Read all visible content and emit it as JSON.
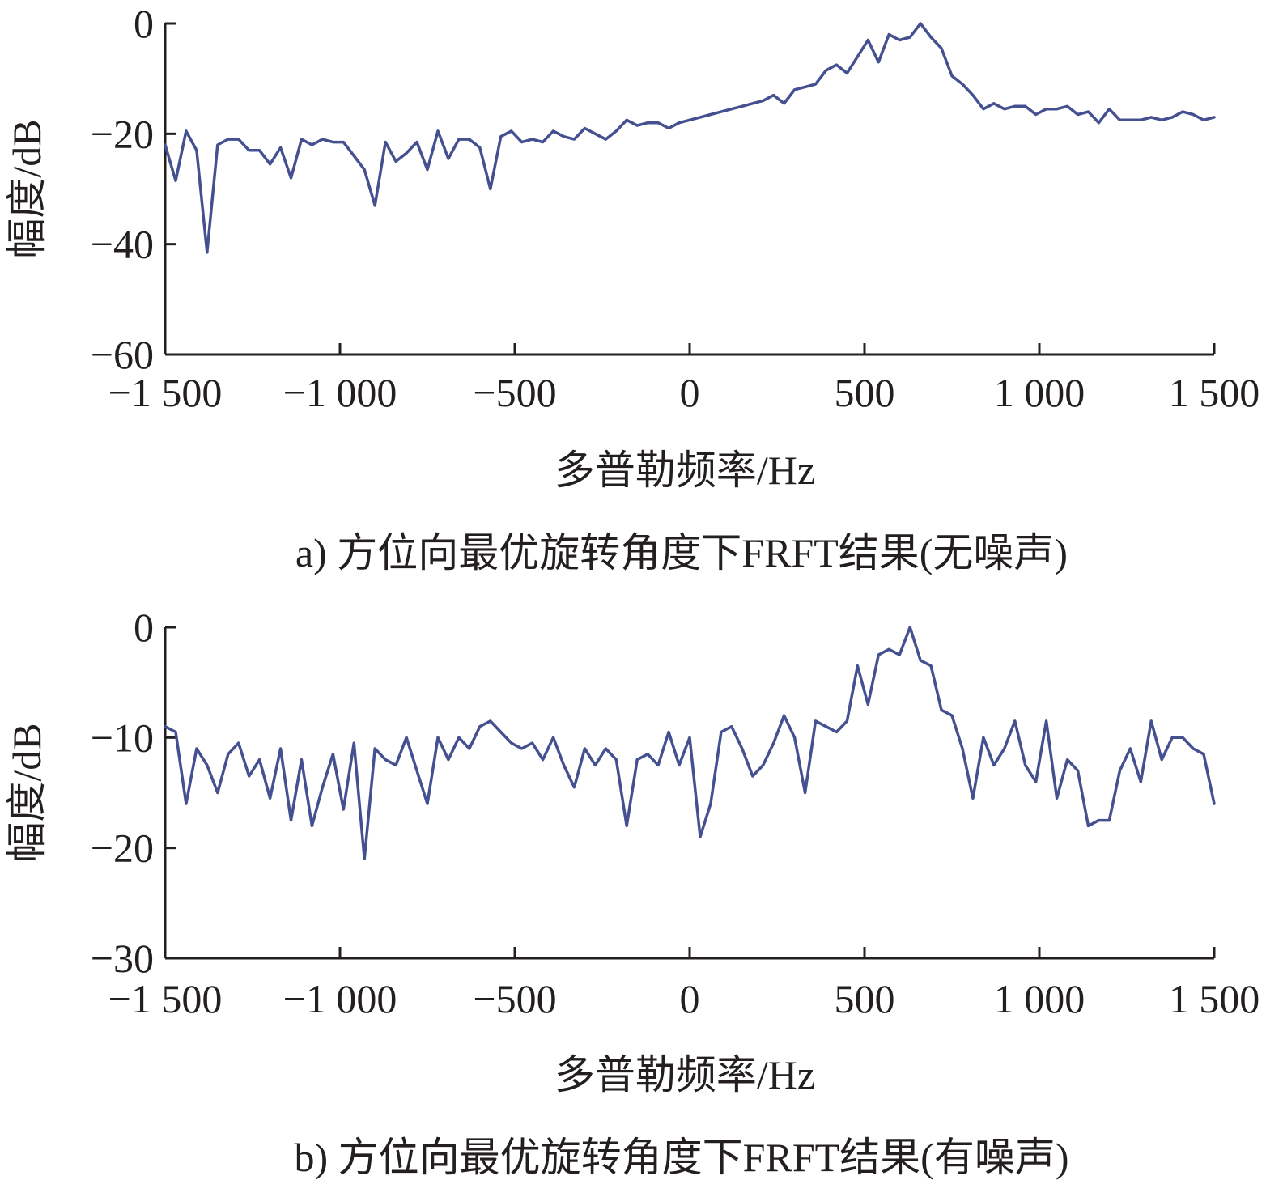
{
  "chart_data": [
    {
      "type": "line",
      "caption": "a) 方位向最优旋转角度下FRFT结果(无噪声)",
      "xlabel": "多普勒频率/Hz",
      "ylabel": "幅度/dB",
      "xlim": [
        -1500,
        1500
      ],
      "ylim": [
        -60,
        0
      ],
      "xticks": [
        -1500,
        -1000,
        -500,
        0,
        500,
        1000,
        1500
      ],
      "xtick_labels": [
        "−1 500",
        "−1 000",
        "−500",
        "0",
        "500",
        "1 000",
        "1 500"
      ],
      "yticks": [
        0,
        -20,
        -40,
        -60
      ],
      "ytick_labels": [
        "0",
        "−20",
        "−40",
        "−60"
      ],
      "line_color": "#44508f",
      "series": [
        {
          "x": [
            -1500,
            -1470,
            -1440,
            -1410,
            -1380,
            -1350,
            -1320,
            -1290,
            -1260,
            -1230,
            -1200,
            -1170,
            -1140,
            -1110,
            -1080,
            -1050,
            -1020,
            -990,
            -960,
            -930,
            -900,
            -870,
            -840,
            -810,
            -780,
            -750,
            -720,
            -690,
            -660,
            -630,
            -600,
            -570,
            -540,
            -510,
            -480,
            -450,
            -420,
            -390,
            -360,
            -330,
            -300,
            -270,
            -240,
            -210,
            -180,
            -150,
            -120,
            -90,
            -60,
            -30,
            0,
            30,
            60,
            90,
            120,
            150,
            180,
            210,
            240,
            270,
            300,
            330,
            360,
            390,
            420,
            450,
            480,
            510,
            540,
            570,
            600,
            630,
            660,
            690,
            720,
            750,
            780,
            810,
            840,
            870,
            900,
            930,
            960,
            990,
            1020,
            1050,
            1080,
            1110,
            1140,
            1170,
            1200,
            1230,
            1260,
            1290,
            1320,
            1350,
            1380,
            1410,
            1440,
            1470,
            1500
          ],
          "y": [
            -22,
            -28.5,
            -19.5,
            -23,
            -41.5,
            -22,
            -21,
            -21,
            -23,
            -23,
            -25.5,
            -22.5,
            -28,
            -21,
            -22,
            -21,
            -21.5,
            -21.5,
            -24,
            -26.5,
            -33,
            -21.5,
            -25,
            -23.5,
            -21.5,
            -26.5,
            -19.5,
            -24.5,
            -21,
            -21,
            -22.5,
            -30,
            -20.5,
            -19.5,
            -21.5,
            -21,
            -21.5,
            -19.5,
            -20.5,
            -21,
            -19,
            -20,
            -21,
            -19.5,
            -17.5,
            -18.5,
            -18,
            -18,
            -19,
            -18,
            -17.5,
            -17,
            -16.5,
            -16,
            -15.5,
            -15,
            -14.5,
            -14,
            -13,
            -14.5,
            -12,
            -11.5,
            -11,
            -8.5,
            -7.5,
            -9,
            -6,
            -3,
            -7,
            -2,
            -3,
            -2.5,
            0,
            -2.5,
            -4.5,
            -9.5,
            -11,
            -13,
            -15.5,
            -14.5,
            -15.5,
            -15,
            -15,
            -16.5,
            -15.5,
            -15.5,
            -15,
            -16.5,
            -16,
            -18,
            -15.5,
            -17.5,
            -17.5,
            -17.5,
            -17,
            -17.5,
            -17,
            -16,
            -16.5,
            -17.5,
            -17
          ]
        }
      ]
    },
    {
      "type": "line",
      "caption": "b) 方位向最优旋转角度下FRFT结果(有噪声)",
      "xlabel": "多普勒频率/Hz",
      "ylabel": "幅度/dB",
      "xlim": [
        -1500,
        1500
      ],
      "ylim": [
        -30,
        0
      ],
      "xticks": [
        -1500,
        -1000,
        -500,
        0,
        500,
        1000,
        1500
      ],
      "xtick_labels": [
        "−1 500",
        "−1 000",
        "−500",
        "0",
        "500",
        "1 000",
        "1 500"
      ],
      "yticks": [
        0,
        -10,
        -20,
        -30
      ],
      "ytick_labels": [
        "0",
        "−10",
        "−20",
        "−30"
      ],
      "line_color": "#44508f",
      "series": [
        {
          "x": [
            -1500,
            -1470,
            -1440,
            -1410,
            -1380,
            -1350,
            -1320,
            -1290,
            -1260,
            -1230,
            -1200,
            -1170,
            -1140,
            -1110,
            -1080,
            -1050,
            -1020,
            -990,
            -960,
            -930,
            -900,
            -870,
            -840,
            -810,
            -780,
            -750,
            -720,
            -690,
            -660,
            -630,
            -600,
            -570,
            -540,
            -510,
            -480,
            -450,
            -420,
            -390,
            -360,
            -330,
            -300,
            -270,
            -240,
            -210,
            -180,
            -150,
            -120,
            -90,
            -60,
            -30,
            0,
            30,
            60,
            90,
            120,
            150,
            180,
            210,
            240,
            270,
            300,
            330,
            360,
            390,
            420,
            450,
            480,
            510,
            540,
            570,
            600,
            630,
            660,
            690,
            720,
            750,
            780,
            810,
            840,
            870,
            900,
            930,
            960,
            990,
            1020,
            1050,
            1080,
            1110,
            1140,
            1170,
            1200,
            1230,
            1260,
            1290,
            1320,
            1350,
            1380,
            1410,
            1440,
            1470,
            1500
          ],
          "y": [
            -9,
            -9.5,
            -16,
            -11,
            -12.5,
            -15,
            -11.5,
            -10.5,
            -13.5,
            -12,
            -15.5,
            -11,
            -17.5,
            -12,
            -18,
            -14.5,
            -11.5,
            -16.5,
            -10.5,
            -21,
            -11,
            -12,
            -12.5,
            -10,
            -13,
            -16,
            -10,
            -12,
            -10,
            -11,
            -9,
            -8.5,
            -9.5,
            -10.5,
            -11,
            -10.5,
            -12,
            -10,
            -12.5,
            -14.5,
            -11,
            -12.5,
            -11,
            -12,
            -18,
            -12,
            -11.5,
            -12.5,
            -9.5,
            -12.5,
            -10,
            -19,
            -16,
            -9.5,
            -9,
            -11,
            -13.5,
            -12.5,
            -10.5,
            -8,
            -10,
            -15,
            -8.5,
            -9,
            -9.5,
            -8.5,
            -3.5,
            -7,
            -2.5,
            -2,
            -2.5,
            0,
            -3,
            -3.5,
            -7.5,
            -8,
            -11,
            -15.5,
            -10,
            -12.5,
            -11,
            -8.5,
            -12.5,
            -14,
            -8.5,
            -15.5,
            -12,
            -13,
            -18,
            -17.5,
            -17.5,
            -13,
            -11,
            -14,
            -8.5,
            -12,
            -10,
            -10,
            -11,
            -11.5,
            -16
          ]
        }
      ]
    }
  ]
}
